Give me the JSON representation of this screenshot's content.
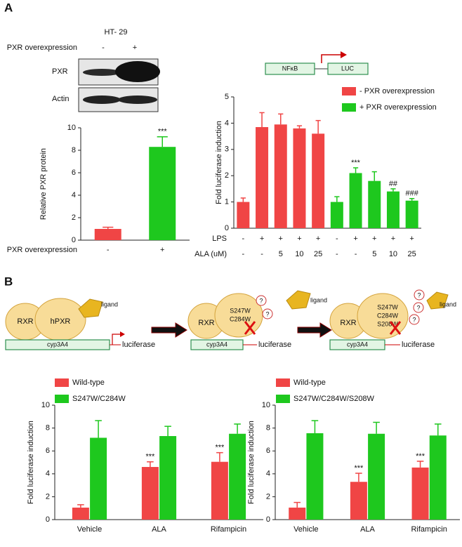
{
  "panel_labels": [
    "A",
    "B"
  ],
  "blot": {
    "cell_line": "HT- 29",
    "condition": "PXR overexpression",
    "lanes": [
      "-",
      "+"
    ],
    "proteins": [
      "PXR",
      "Actin"
    ]
  },
  "reporter_construct": {
    "promoter": "NFκB",
    "reporter": "LUC"
  },
  "diagram_b": {
    "panels": [
      {
        "rxr": "RXR",
        "pxr": [
          "hPXR"
        ],
        "ligand": "ligand",
        "promoter": "cyp3A4",
        "reporter": "luciferase"
      },
      {
        "rxr": "RXR",
        "pxr": [
          "S247W",
          "C284W"
        ],
        "questions": [
          "?",
          "?"
        ],
        "ligand": "ligand",
        "promoter": "cyp3A4",
        "reporter": "luciferase"
      },
      {
        "rxr": "RXR",
        "pxr": [
          "S247W",
          "C284W",
          "S208W"
        ],
        "questions": [
          "?",
          "?",
          "?"
        ],
        "ligand": "ligand",
        "promoter": "cyp3A4",
        "reporter": "luciferase"
      }
    ]
  },
  "chart_data": [
    {
      "type": "bar",
      "ylabel": "Relative PXR protein",
      "xlabel": "PXR overexpression",
      "categories": [
        "-",
        "+"
      ],
      "values": [
        1.0,
        8.3
      ],
      "errors": [
        0.15,
        0.9
      ],
      "colors": [
        "#f04545",
        "#1ec81e"
      ],
      "significance": [
        null,
        "***"
      ],
      "ylim": [
        0,
        10
      ],
      "yticks": [
        0,
        2,
        4,
        6,
        8,
        10
      ]
    },
    {
      "type": "bar",
      "ylabel": "Fold luciferase induction",
      "series": [
        {
          "name": "- PXR overexpression",
          "color": "#f04545",
          "values": [
            1.0,
            3.85,
            3.95,
            3.8,
            3.6
          ],
          "errors": [
            0.15,
            0.55,
            0.4,
            0.1,
            0.5
          ]
        },
        {
          "name": "+ PXR overexpression",
          "color": "#1ec81e",
          "values": [
            1.0,
            2.1,
            1.8,
            1.4,
            1.05
          ],
          "errors": [
            0.2,
            0.2,
            0.35,
            0.1,
            0.08
          ],
          "significance": [
            null,
            "***",
            null,
            "##",
            "###"
          ]
        }
      ],
      "conditions": [
        {
          "label": "LPS",
          "values": [
            "-",
            "+",
            "+",
            "+",
            "+",
            "-",
            "+",
            "+",
            "+",
            "+"
          ]
        },
        {
          "label": "ALA (uM)",
          "values": [
            "-",
            "-",
            "5",
            "10",
            "25",
            "-",
            "-",
            "5",
            "10",
            "25"
          ]
        }
      ],
      "ylim": [
        0,
        5
      ],
      "yticks": [
        0,
        1,
        2,
        3,
        4,
        5
      ]
    },
    {
      "type": "bar",
      "ylabel": "Fold luciferase induction",
      "categories": [
        "Vehicle",
        "ALA",
        "Rifampicin"
      ],
      "series": [
        {
          "name": "Wild-type",
          "color": "#f04545",
          "values": [
            1.05,
            4.6,
            5.05
          ],
          "errors": [
            0.25,
            0.45,
            0.8
          ],
          "significance": [
            null,
            "***",
            "***"
          ]
        },
        {
          "name": "S247W/C284W",
          "color": "#1ec81e",
          "values": [
            7.15,
            7.3,
            7.5
          ],
          "errors": [
            1.5,
            0.85,
            0.85
          ]
        }
      ],
      "ylim": [
        0,
        10
      ],
      "yticks": [
        0,
        2,
        4,
        6,
        8,
        10
      ]
    },
    {
      "type": "bar",
      "ylabel": "Fold luciferase induction",
      "categories": [
        "Vehicle",
        "ALA",
        "Rifampicin"
      ],
      "series": [
        {
          "name": "Wild-type",
          "color": "#f04545",
          "values": [
            1.05,
            3.3,
            4.55
          ],
          "errors": [
            0.45,
            0.75,
            0.55
          ],
          "significance": [
            null,
            "***",
            "***"
          ]
        },
        {
          "name": "S247W/C284W/S208W",
          "color": "#1ec81e",
          "values": [
            7.55,
            7.5,
            7.35
          ],
          "errors": [
            1.1,
            1.0,
            1.0
          ]
        }
      ],
      "ylim": [
        0,
        10
      ],
      "yticks": [
        0,
        2,
        4,
        6,
        8,
        10
      ]
    }
  ]
}
